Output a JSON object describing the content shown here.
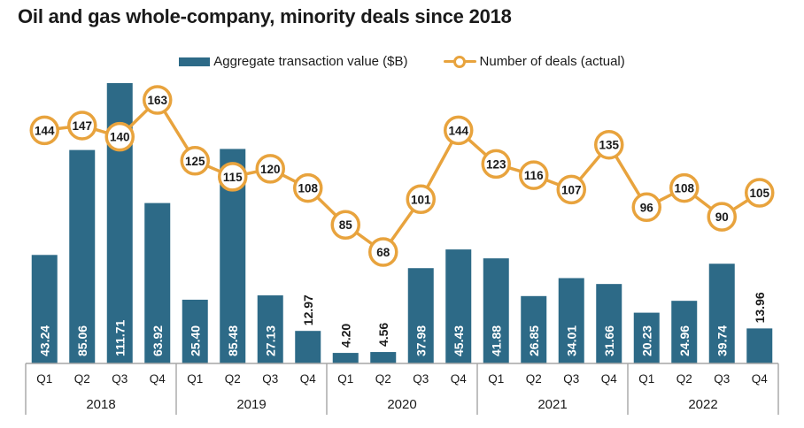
{
  "title": "Oil and gas whole-company, minority deals since 2018",
  "legend": {
    "bar_label": "Aggregate transaction value ($B)",
    "line_label": "Number of deals (actual)"
  },
  "colors": {
    "bar": "#2d6a87",
    "line": "#e8a33d",
    "marker_fill": "#ffffff",
    "bar_label_inside": "#ffffff",
    "bar_label_outside": "#1a1a1a",
    "axis": "#a6a6a6",
    "text": "#1a1a1a"
  },
  "chart_data": {
    "type": "bar+line combo",
    "x_unit": "quarter",
    "grid": "off",
    "legend_position": "top-center",
    "years": [
      "2018",
      "2019",
      "2020",
      "2021",
      "2022"
    ],
    "quarters_per_year": [
      "Q1",
      "Q2",
      "Q3",
      "Q4"
    ],
    "categories": [
      "Q1 2018",
      "Q2 2018",
      "Q3 2018",
      "Q4 2018",
      "Q1 2019",
      "Q2 2019",
      "Q3 2019",
      "Q4 2019",
      "Q1 2020",
      "Q2 2020",
      "Q3 2020",
      "Q4 2020",
      "Q1 2021",
      "Q2 2021",
      "Q3 2021",
      "Q4 2021",
      "Q1 2022",
      "Q2 2022",
      "Q3 2022",
      "Q4 2022"
    ],
    "series": [
      {
        "name": "Aggregate transaction value ($B)",
        "type": "bar",
        "label_decimals": 2,
        "values": [
          43.24,
          85.06,
          111.71,
          63.92,
          25.4,
          85.48,
          27.13,
          12.97,
          4.2,
          4.56,
          37.98,
          45.43,
          41.88,
          26.85,
          34.01,
          31.66,
          20.23,
          24.96,
          39.74,
          13.96
        ]
      },
      {
        "name": "Number of deals (actual)",
        "type": "line",
        "marker": "circle-with-value",
        "values": [
          144,
          147,
          140,
          163,
          125,
          115,
          120,
          108,
          85,
          68,
          101,
          144,
          123,
          116,
          107,
          135,
          96,
          108,
          90,
          105
        ]
      }
    ]
  }
}
